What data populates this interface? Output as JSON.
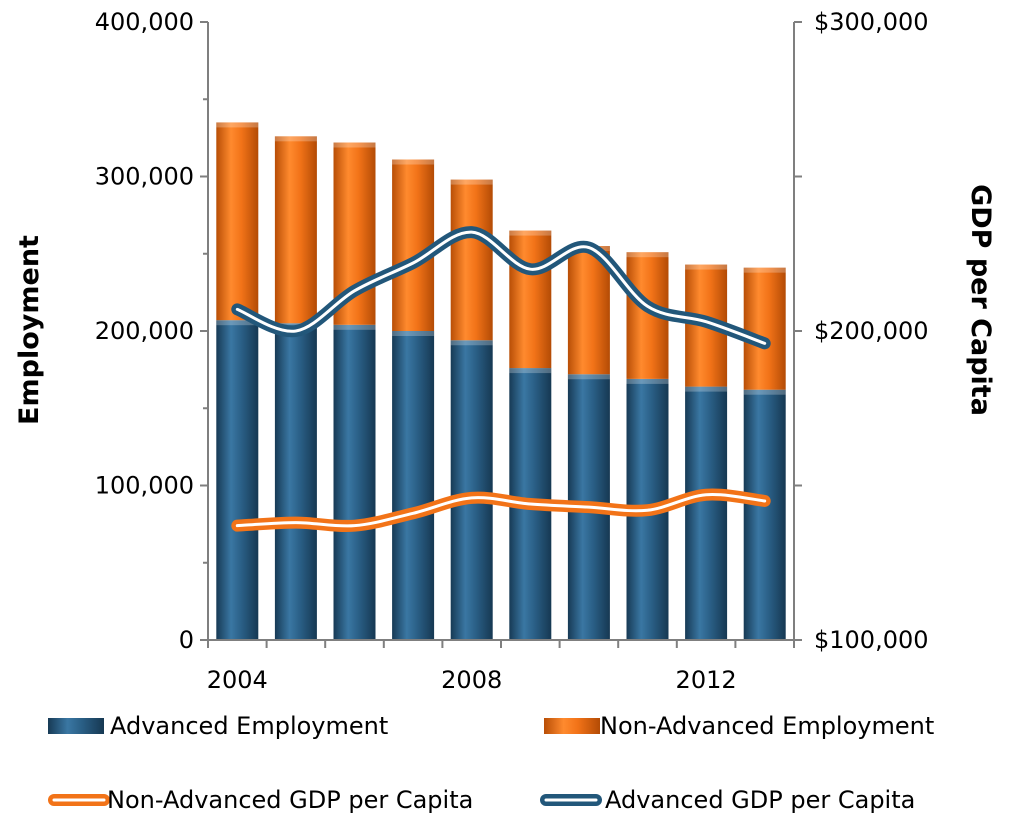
{
  "chart_data": {
    "type": "bar",
    "title": "",
    "stacked": true,
    "x": [
      2004,
      2005,
      2006,
      2007,
      2008,
      2009,
      2010,
      2011,
      2012,
      2013
    ],
    "x_tick_labels": [
      "2004",
      "2008",
      "2012"
    ],
    "ylabel": "Employment",
    "y2label": "GDP per Capita",
    "ylim": [
      0,
      400000
    ],
    "y2lim": [
      100000,
      300000
    ],
    "y_tick_labels": [
      "0",
      "100,000",
      "200,000",
      "300,000",
      "400,000"
    ],
    "y2_tick_labels": [
      "$100,000",
      "$200,000",
      "$300,000"
    ],
    "grid": false,
    "legend_position": "bottom",
    "series": [
      {
        "name": "Advanced Employment",
        "kind": "bar",
        "axis": "left",
        "color": "#2a5f86",
        "values": [
          207000,
          205000,
          204000,
          200000,
          194000,
          176000,
          172000,
          169000,
          164000,
          162000
        ]
      },
      {
        "name": "Non-Advanced Employment",
        "kind": "bar",
        "axis": "left",
        "color": "#f27318",
        "values": [
          128000,
          121000,
          118000,
          111000,
          104000,
          89000,
          83000,
          82000,
          79000,
          79000
        ]
      },
      {
        "name": "Non-Advanced GDP per Capita",
        "kind": "line",
        "axis": "right",
        "color": "#f27318",
        "values": [
          137000,
          138000,
          137000,
          141000,
          146000,
          144000,
          143000,
          142000,
          147000,
          145000
        ]
      },
      {
        "name": "Advanced GDP per Capita",
        "kind": "line",
        "axis": "right",
        "color": "#22577a",
        "values": [
          207000,
          200000,
          213000,
          222000,
          232000,
          220000,
          227000,
          208000,
          203000,
          196000
        ]
      }
    ],
    "legend": [
      {
        "label": "Advanced Employment",
        "swatch": "bar",
        "color": "#2a5f86"
      },
      {
        "label": "Non-Advanced Employment",
        "swatch": "bar",
        "color": "#f27318"
      },
      {
        "label": "Non-Advanced GDP per Capita",
        "swatch": "line",
        "color": "#f27318"
      },
      {
        "label": "Advanced GDP per Capita",
        "swatch": "line",
        "color": "#22577a"
      }
    ]
  }
}
